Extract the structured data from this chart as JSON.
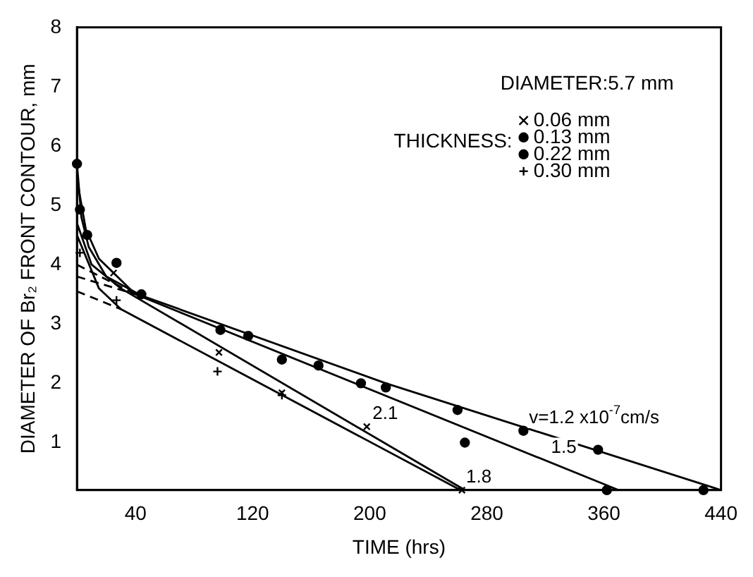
{
  "chart_data": {
    "type": "scatter",
    "xlabel": "TIME (hrs)",
    "ylabel": "DIAMETER OF Br₂ FRONT CONTOUR, mm",
    "xlim": [
      0,
      440
    ],
    "xticks": [
      40,
      120,
      200,
      280,
      360,
      440
    ],
    "ylim": [
      0.2,
      8
    ],
    "yticks": [
      1,
      2,
      3,
      4,
      5,
      6,
      7,
      8
    ],
    "legend": "top right",
    "legend_title": "THICKNESS:",
    "series": [
      {
        "name": "0.06 mm",
        "color": "#000000",
        "marker": "cross",
        "x": [
          25,
          97,
          140,
          198,
          263
        ],
        "values": [
          3.86,
          2.52,
          1.84,
          1.27,
          0.2
        ]
      },
      {
        "name": "0.13 mm",
        "color": "#000000",
        "marker": "circle",
        "x": [
          2,
          27,
          98,
          140,
          194,
          265,
          362
        ],
        "values": [
          4.93,
          4.03,
          2.9,
          2.4,
          2.0,
          1.0,
          0.2
        ]
      },
      {
        "name": "0.22 mm",
        "color": "#000000",
        "marker": "circle",
        "x": [
          0,
          7,
          44,
          117,
          165,
          211,
          260,
          305,
          356,
          428
        ],
        "values": [
          5.7,
          4.5,
          3.5,
          2.8,
          2.3,
          1.93,
          1.55,
          1.2,
          0.88,
          0.2
        ]
      },
      {
        "name": "0.30 mm",
        "color": "#000000",
        "marker": "plus",
        "x": [
          2,
          27,
          96,
          140
        ],
        "values": [
          4.2,
          3.4,
          2.2,
          1.8
        ]
      },
      {
        "type": "line",
        "color": "#000000",
        "marker": "none",
        "x": [
          0,
          3,
          8,
          20,
          44,
          211,
          440
        ],
        "values": [
          5.7,
          4.8,
          4.3,
          3.8,
          3.48,
          2.0,
          0.2
        ]
      },
      {
        "type": "line",
        "color": "#000000",
        "marker": "none",
        "x": [
          1,
          6,
          15,
          40,
          370
        ],
        "values": [
          5.3,
          4.6,
          4.1,
          3.5,
          0.2
        ]
      },
      {
        "type": "line",
        "color": "#000000",
        "marker": "none",
        "x": [
          0,
          10,
          30,
          265
        ],
        "values": [
          4.7,
          4.0,
          3.6,
          0.2
        ]
      },
      {
        "type": "line",
        "color": "#000000",
        "marker": "none",
        "x": [
          0,
          15,
          30,
          262
        ],
        "values": [
          4.5,
          3.6,
          3.25,
          0.2
        ]
      },
      {
        "type": "line",
        "color": "#000000",
        "marker": "none",
        "line_style": "dashed",
        "x": [
          0,
          30
        ],
        "values": [
          3.55,
          3.25
        ]
      },
      {
        "type": "line",
        "color": "#000000",
        "marker": "none",
        "line_style": "dashed",
        "x": [
          0,
          40
        ],
        "values": [
          3.8,
          3.5
        ]
      },
      {
        "type": "line",
        "color": "#000000",
        "marker": "none",
        "line_style": "dashed",
        "x": [
          0,
          40
        ],
        "values": [
          4.0,
          3.5
        ]
      }
    ],
    "annotations": [
      "DIAMETER:5.7 mm",
      {
        "text": "1.8",
        "x": 262,
        "y": 0.2
      },
      {
        "text": "2.1",
        "x": 198,
        "y": 1.27
      },
      {
        "text": "1.5",
        "x": 320,
        "y": 0.7
      },
      {
        "text": "v=1.2 x10$^{-7}$cm/s",
        "x": 305,
        "y": 1.2
      }
    ]
  }
}
